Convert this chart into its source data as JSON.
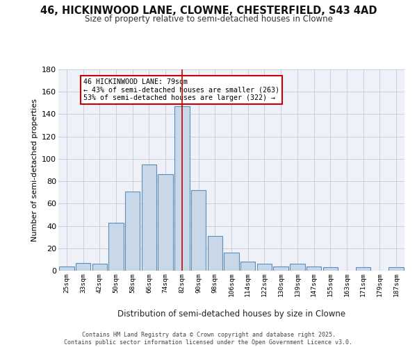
{
  "title_line1": "46, HICKINWOOD LANE, CLOWNE, CHESTERFIELD, S43 4AD",
  "title_line2": "Size of property relative to semi-detached houses in Clowne",
  "xlabel": "Distribution of semi-detached houses by size in Clowne",
  "ylabel": "Number of semi-detached properties",
  "footer": "Contains HM Land Registry data © Crown copyright and database right 2025.\nContains public sector information licensed under the Open Government Licence v3.0.",
  "bins": [
    "25sqm",
    "33sqm",
    "42sqm",
    "50sqm",
    "58sqm",
    "66sqm",
    "74sqm",
    "82sqm",
    "90sqm",
    "98sqm",
    "106sqm",
    "114sqm",
    "122sqm",
    "130sqm",
    "139sqm",
    "147sqm",
    "155sqm",
    "163sqm",
    "171sqm",
    "179sqm",
    "187sqm"
  ],
  "values": [
    4,
    7,
    6,
    43,
    71,
    95,
    86,
    147,
    72,
    31,
    16,
    8,
    6,
    4,
    6,
    4,
    3,
    0,
    3,
    0,
    3
  ],
  "bar_color": "#c8d8e8",
  "bar_edge_color": "#5b8db8",
  "vline_bin_index": 7,
  "annotation_text": "46 HICKINWOOD LANE: 79sqm\n← 43% of semi-detached houses are smaller (263)\n53% of semi-detached houses are larger (322) →",
  "annotation_box_color": "#ffffff",
  "annotation_box_edge_color": "#cc0000",
  "vline_color": "#cc0000",
  "grid_color": "#ccccdd",
  "background_color": "#eef2f8",
  "ylim": [
    0,
    180
  ],
  "yticks": [
    0,
    20,
    40,
    60,
    80,
    100,
    120,
    140,
    160,
    180
  ]
}
